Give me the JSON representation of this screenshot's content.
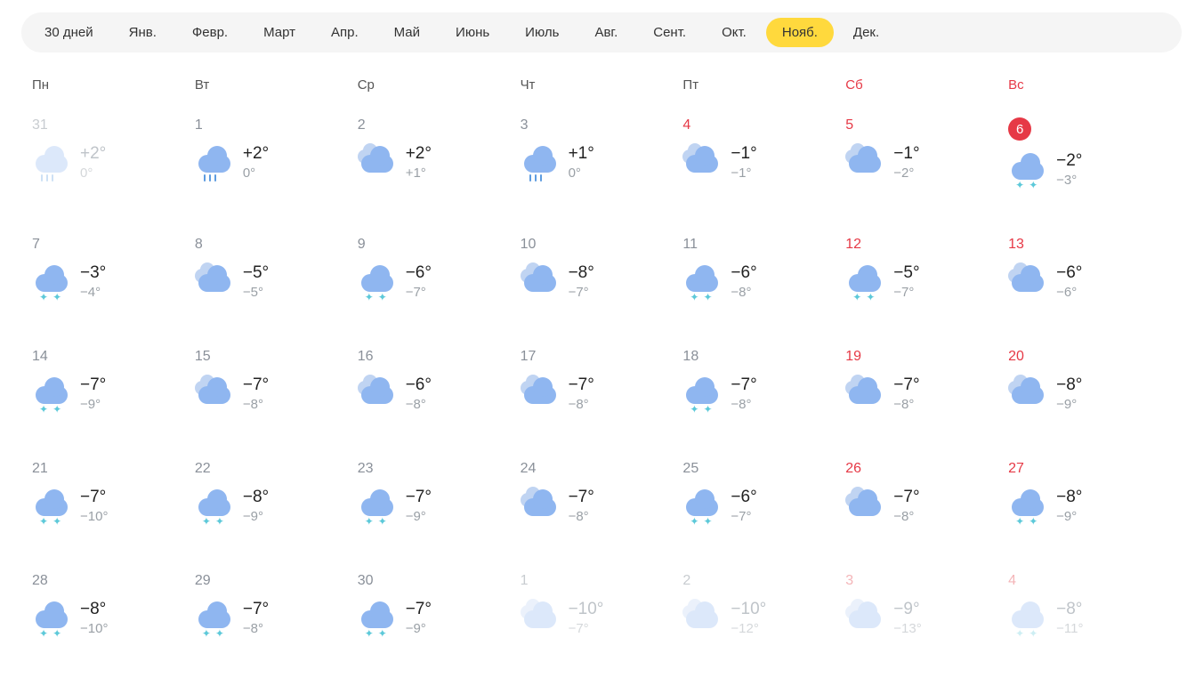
{
  "nav": {
    "tabs": [
      "30 дней",
      "Янв.",
      "Февр.",
      "Март",
      "Апр.",
      "Май",
      "Июнь",
      "Июль",
      "Авг.",
      "Сент.",
      "Окт.",
      "Нояб.",
      "Дек."
    ],
    "active_index": 11
  },
  "weekdays": [
    {
      "label": "Пн",
      "weekend": false
    },
    {
      "label": "Вт",
      "weekend": false
    },
    {
      "label": "Ср",
      "weekend": false
    },
    {
      "label": "Чт",
      "weekend": false
    },
    {
      "label": "Пт",
      "weekend": false
    },
    {
      "label": "Сб",
      "weekend": true
    },
    {
      "label": "Вс",
      "weekend": true
    }
  ],
  "days": [
    {
      "num": "31",
      "high": "+2°",
      "low": "0°",
      "icon": "rain",
      "faded": true,
      "weekend": false,
      "today": false
    },
    {
      "num": "1",
      "high": "+2°",
      "low": "0°",
      "icon": "rain",
      "faded": false,
      "weekend": false,
      "today": false
    },
    {
      "num": "2",
      "high": "+2°",
      "low": "+1°",
      "icon": "overcast",
      "faded": false,
      "weekend": false,
      "today": false
    },
    {
      "num": "3",
      "high": "+1°",
      "low": "0°",
      "icon": "rain",
      "faded": false,
      "weekend": false,
      "today": false
    },
    {
      "num": "4",
      "high": "−1°",
      "low": "−1°",
      "icon": "overcast",
      "faded": false,
      "weekend": true,
      "today": false
    },
    {
      "num": "5",
      "high": "−1°",
      "low": "−2°",
      "icon": "overcast",
      "faded": false,
      "weekend": true,
      "today": false
    },
    {
      "num": "6",
      "high": "−2°",
      "low": "−3°",
      "icon": "snow",
      "faded": false,
      "weekend": true,
      "today": true
    },
    {
      "num": "7",
      "high": "−3°",
      "low": "−4°",
      "icon": "snow",
      "faded": false,
      "weekend": false,
      "today": false
    },
    {
      "num": "8",
      "high": "−5°",
      "low": "−5°",
      "icon": "overcast",
      "faded": false,
      "weekend": false,
      "today": false
    },
    {
      "num": "9",
      "high": "−6°",
      "low": "−7°",
      "icon": "snow",
      "faded": false,
      "weekend": false,
      "today": false
    },
    {
      "num": "10",
      "high": "−8°",
      "low": "−7°",
      "icon": "overcast",
      "faded": false,
      "weekend": false,
      "today": false
    },
    {
      "num": "11",
      "high": "−6°",
      "low": "−8°",
      "icon": "snow",
      "faded": false,
      "weekend": false,
      "today": false
    },
    {
      "num": "12",
      "high": "−5°",
      "low": "−7°",
      "icon": "snow",
      "faded": false,
      "weekend": true,
      "today": false
    },
    {
      "num": "13",
      "high": "−6°",
      "low": "−6°",
      "icon": "overcast",
      "faded": false,
      "weekend": true,
      "today": false
    },
    {
      "num": "14",
      "high": "−7°",
      "low": "−9°",
      "icon": "snow",
      "faded": false,
      "weekend": false,
      "today": false
    },
    {
      "num": "15",
      "high": "−7°",
      "low": "−8°",
      "icon": "overcast",
      "faded": false,
      "weekend": false,
      "today": false
    },
    {
      "num": "16",
      "high": "−6°",
      "low": "−8°",
      "icon": "overcast",
      "faded": false,
      "weekend": false,
      "today": false
    },
    {
      "num": "17",
      "high": "−7°",
      "low": "−8°",
      "icon": "overcast",
      "faded": false,
      "weekend": false,
      "today": false
    },
    {
      "num": "18",
      "high": "−7°",
      "low": "−8°",
      "icon": "snow",
      "faded": false,
      "weekend": false,
      "today": false
    },
    {
      "num": "19",
      "high": "−7°",
      "low": "−8°",
      "icon": "overcast",
      "faded": false,
      "weekend": true,
      "today": false
    },
    {
      "num": "20",
      "high": "−8°",
      "low": "−9°",
      "icon": "overcast",
      "faded": false,
      "weekend": true,
      "today": false
    },
    {
      "num": "21",
      "high": "−7°",
      "low": "−10°",
      "icon": "snow",
      "faded": false,
      "weekend": false,
      "today": false
    },
    {
      "num": "22",
      "high": "−8°",
      "low": "−9°",
      "icon": "snow",
      "faded": false,
      "weekend": false,
      "today": false
    },
    {
      "num": "23",
      "high": "−7°",
      "low": "−9°",
      "icon": "snow",
      "faded": false,
      "weekend": false,
      "today": false
    },
    {
      "num": "24",
      "high": "−7°",
      "low": "−8°",
      "icon": "overcast",
      "faded": false,
      "weekend": false,
      "today": false
    },
    {
      "num": "25",
      "high": "−6°",
      "low": "−7°",
      "icon": "snow",
      "faded": false,
      "weekend": false,
      "today": false
    },
    {
      "num": "26",
      "high": "−7°",
      "low": "−8°",
      "icon": "overcast",
      "faded": false,
      "weekend": true,
      "today": false
    },
    {
      "num": "27",
      "high": "−8°",
      "low": "−9°",
      "icon": "snow",
      "faded": false,
      "weekend": true,
      "today": false
    },
    {
      "num": "28",
      "high": "−8°",
      "low": "−10°",
      "icon": "snow",
      "faded": false,
      "weekend": false,
      "today": false
    },
    {
      "num": "29",
      "high": "−7°",
      "low": "−8°",
      "icon": "snow",
      "faded": false,
      "weekend": false,
      "today": false
    },
    {
      "num": "30",
      "high": "−7°",
      "low": "−9°",
      "icon": "snow",
      "faded": false,
      "weekend": false,
      "today": false
    },
    {
      "num": "1",
      "high": "−10°",
      "low": "−7°",
      "icon": "overcast",
      "faded": true,
      "weekend": false,
      "today": false
    },
    {
      "num": "2",
      "high": "−10°",
      "low": "−12°",
      "icon": "overcast",
      "faded": true,
      "weekend": false,
      "today": false
    },
    {
      "num": "3",
      "high": "−9°",
      "low": "−13°",
      "icon": "overcast",
      "faded": true,
      "weekend": true,
      "today": false
    },
    {
      "num": "4",
      "high": "−8°",
      "low": "−11°",
      "icon": "snow",
      "faded": true,
      "weekend": true,
      "today": false
    }
  ],
  "colors": {
    "nav_bg": "#f5f5f5",
    "active_tab_bg": "#ffd93d",
    "weekend_text": "#e63946",
    "muted_text": "#8a9099",
    "faded_text": "#c8ccd0",
    "high_temp_text": "#222222",
    "low_temp_text": "#9aa0a6",
    "cloud_main": "#8fb6f0",
    "cloud_light": "#c0d4f2",
    "rain_drop": "#5d9ce0",
    "snow_flake": "#5dc9d9"
  }
}
